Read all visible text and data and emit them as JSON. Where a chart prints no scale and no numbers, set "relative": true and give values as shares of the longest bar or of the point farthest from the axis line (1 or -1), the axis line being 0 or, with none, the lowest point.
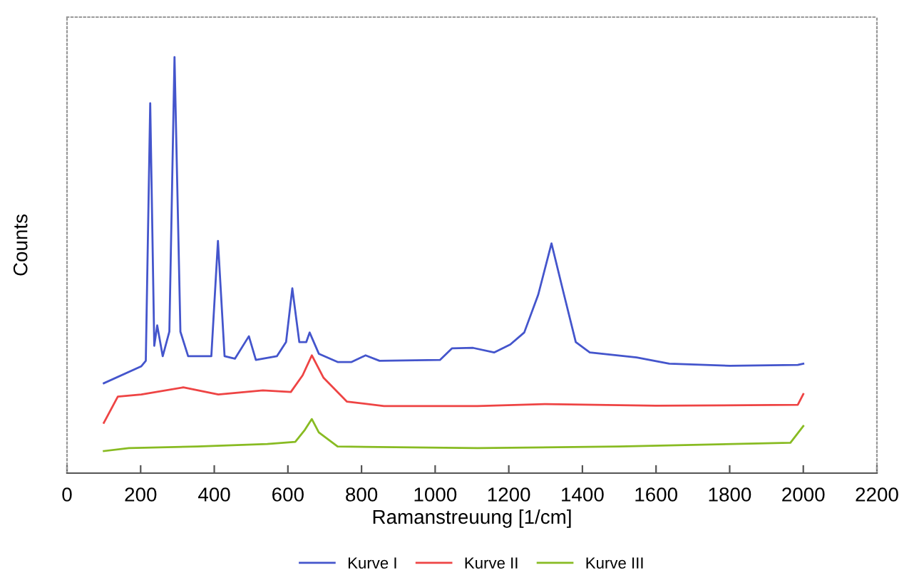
{
  "chart_data": {
    "type": "line",
    "relative": true,
    "xlabel": "Ramanstreuung [1/cm]",
    "ylabel": "Counts",
    "xlim": [
      0,
      2200
    ],
    "xticks": [
      0,
      200,
      400,
      600,
      800,
      1000,
      1200,
      1400,
      1600,
      1800,
      2000,
      2200
    ],
    "grid": false,
    "legend": "bottom",
    "marker": "none",
    "line_style": "solid",
    "tick_labels": "x",
    "series": [
      {
        "name": "Kurve I",
        "color": "#4455cc",
        "x": [
          100,
          202,
          214,
          226,
          237,
          245,
          260,
          278,
          292,
          308,
          329,
          392,
          410,
          428,
          456,
          494,
          513,
          570,
          595,
          612,
          631,
          650,
          659,
          684,
          735,
          773,
          811,
          849,
          1013,
          1046,
          1103,
          1160,
          1204,
          1242,
          1280,
          1316,
          1350,
          1382,
          1420,
          1547,
          1636,
          1800,
          1985,
          2000
        ],
        "values": [
          0.216,
          0.257,
          0.27,
          0.889,
          0.306,
          0.355,
          0.281,
          0.34,
          1.0,
          0.34,
          0.281,
          0.281,
          0.558,
          0.281,
          0.275,
          0.329,
          0.272,
          0.281,
          0.315,
          0.444,
          0.315,
          0.315,
          0.338,
          0.287,
          0.267,
          0.267,
          0.283,
          0.27,
          0.272,
          0.3,
          0.301,
          0.29,
          0.309,
          0.338,
          0.429,
          0.552,
          0.429,
          0.315,
          0.29,
          0.278,
          0.263,
          0.258,
          0.26,
          0.263
        ]
      },
      {
        "name": "Kurve II",
        "color": "#ee4444",
        "x": [
          100,
          138,
          202,
          316,
          411,
          532,
          608,
          640,
          665,
          697,
          760,
          861,
          1115,
          1300,
          1600,
          1985,
          2000
        ],
        "values": [
          0.121,
          0.184,
          0.189,
          0.206,
          0.189,
          0.199,
          0.195,
          0.235,
          0.283,
          0.229,
          0.172,
          0.161,
          0.161,
          0.166,
          0.162,
          0.164,
          0.19
        ]
      },
      {
        "name": "Kurve III",
        "color": "#88bb22",
        "x": [
          100,
          168,
          354,
          544,
          620,
          646,
          665,
          684,
          735,
          1115,
          1500,
          1965,
          2000
        ],
        "values": [
          0.053,
          0.06,
          0.064,
          0.07,
          0.075,
          0.104,
          0.13,
          0.098,
          0.064,
          0.06,
          0.064,
          0.073,
          0.113
        ]
      }
    ]
  }
}
